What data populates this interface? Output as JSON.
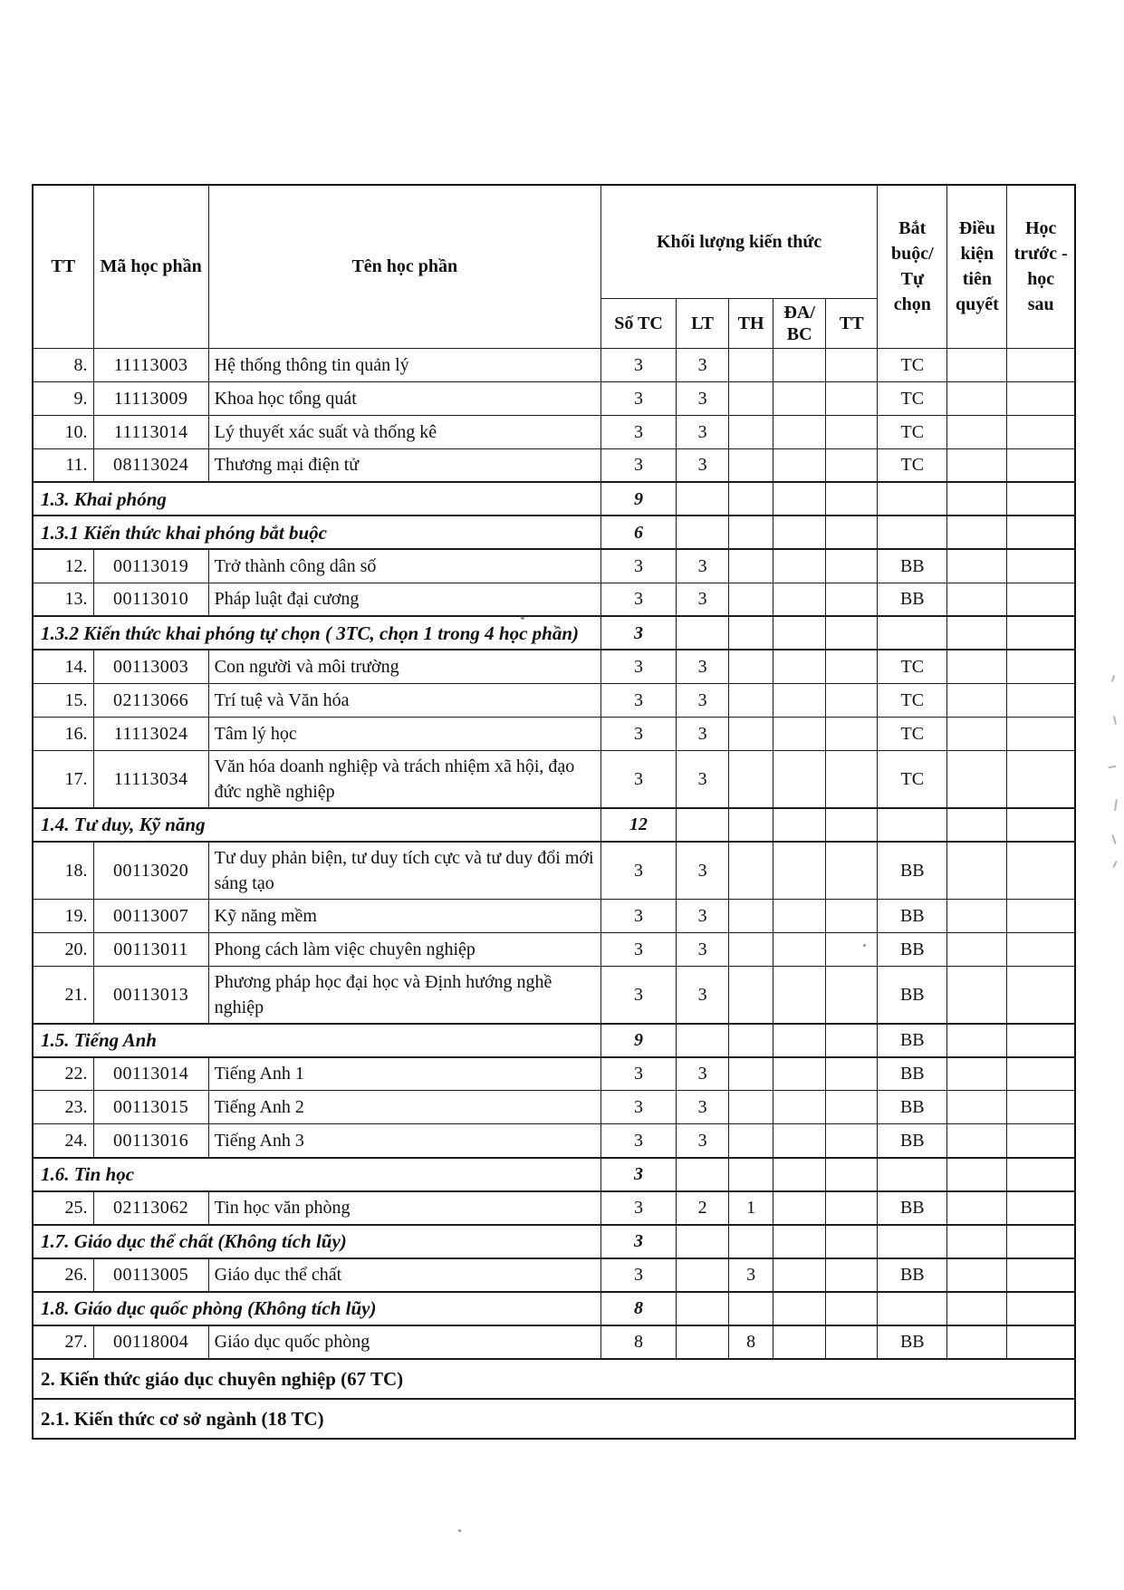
{
  "table": {
    "header": {
      "tt": "TT",
      "ma_hoc_phan": "Mã học phần",
      "ten_hoc_phan": "Tên học phần",
      "khoi_luong": "Khối lượng kiến thức",
      "sub": {
        "so_tc": "Số TC",
        "lt": "LT",
        "th": "TH",
        "da_bc": "ĐA/ BC",
        "tt": "TT"
      },
      "bat_buoc": "Bắt buộc/ Tự chọn",
      "dieu_kien": "Điều kiện tiên quyết",
      "hoc_truoc": "Học trước - học sau"
    },
    "rows": [
      {
        "type": "course",
        "tt": "8.",
        "code": "11113003",
        "name": "Hệ thống thông tin quản lý",
        "so_tc": "3",
        "lt": "3",
        "th": "",
        "da_bc": "",
        "tt2": "",
        "bat_buoc": "TC",
        "dieu_kien": "",
        "hoc_truoc": ""
      },
      {
        "type": "course",
        "tt": "9.",
        "code": "11113009",
        "name": "Khoa học tổng quát",
        "so_tc": "3",
        "lt": "3",
        "th": "",
        "da_bc": "",
        "tt2": "",
        "bat_buoc": "TC",
        "dieu_kien": "",
        "hoc_truoc": ""
      },
      {
        "type": "course",
        "tt": "10.",
        "code": "11113014",
        "name": "Lý thuyết xác suất và thống kê",
        "so_tc": "3",
        "lt": "3",
        "th": "",
        "da_bc": "",
        "tt2": "",
        "bat_buoc": "TC",
        "dieu_kien": "",
        "hoc_truoc": ""
      },
      {
        "type": "course",
        "tt": "11.",
        "code": "08113024",
        "name": "Thương mại điện tử",
        "so_tc": "3",
        "lt": "3",
        "th": "",
        "da_bc": "",
        "tt2": "",
        "bat_buoc": "TC",
        "dieu_kien": "",
        "hoc_truoc": ""
      },
      {
        "type": "section",
        "label": "1.3. Khai phóng",
        "so_tc": "9",
        "lt": "",
        "th": "",
        "da_bc": "",
        "tt2": "",
        "bat_buoc": "",
        "dieu_kien": "",
        "hoc_truoc": ""
      },
      {
        "type": "section",
        "label": "1.3.1 Kiến thức khai phóng bắt buộc",
        "so_tc": "6",
        "lt": "",
        "th": "",
        "da_bc": "",
        "tt2": "",
        "bat_buoc": "",
        "dieu_kien": "",
        "hoc_truoc": ""
      },
      {
        "type": "course",
        "tt": "12.",
        "code": "00113019",
        "name": "Trở thành công dân số",
        "so_tc": "3",
        "lt": "3",
        "th": "",
        "da_bc": "",
        "tt2": "",
        "bat_buoc": "BB",
        "dieu_kien": "",
        "hoc_truoc": ""
      },
      {
        "type": "course",
        "tt": "13.",
        "code": "00113010",
        "name": "Pháp luật đại cương",
        "so_tc": "3",
        "lt": "3",
        "th": "",
        "da_bc": "",
        "tt2": "",
        "bat_buoc": "BB",
        "dieu_kien": "",
        "hoc_truoc": ""
      },
      {
        "type": "section",
        "label": "1.3.2 Kiến thức khai phóng tự chọn ( 3TC, chọn 1 trong 4 học phần)",
        "so_tc": "3",
        "lt": "",
        "th": "",
        "da_bc": "",
        "tt2": "",
        "bat_buoc": "",
        "dieu_kien": "",
        "hoc_truoc": ""
      },
      {
        "type": "course",
        "tt": "14.",
        "code": "00113003",
        "name": "Con người và môi trường",
        "so_tc": "3",
        "lt": "3",
        "th": "",
        "da_bc": "",
        "tt2": "",
        "bat_buoc": "TC",
        "dieu_kien": "",
        "hoc_truoc": ""
      },
      {
        "type": "course",
        "tt": "15.",
        "code": "02113066",
        "name": "Trí tuệ và Văn hóa",
        "so_tc": "3",
        "lt": "3",
        "th": "",
        "da_bc": "",
        "tt2": "",
        "bat_buoc": "TC",
        "dieu_kien": "",
        "hoc_truoc": ""
      },
      {
        "type": "course",
        "tt": "16.",
        "code": "11113024",
        "name": "Tâm lý học",
        "so_tc": "3",
        "lt": "3",
        "th": "",
        "da_bc": "",
        "tt2": "",
        "bat_buoc": "TC",
        "dieu_kien": "",
        "hoc_truoc": ""
      },
      {
        "type": "course",
        "tt": "17.",
        "code": "11113034",
        "name": "Văn hóa doanh nghiệp và trách nhiệm xã hội, đạo đức nghề nghiệp",
        "so_tc": "3",
        "lt": "3",
        "th": "",
        "da_bc": "",
        "tt2": "",
        "bat_buoc": "TC",
        "dieu_kien": "",
        "hoc_truoc": ""
      },
      {
        "type": "section",
        "label": "1.4. Tư duy, Kỹ năng",
        "so_tc": "12",
        "lt": "",
        "th": "",
        "da_bc": "",
        "tt2": "",
        "bat_buoc": "",
        "dieu_kien": "",
        "hoc_truoc": ""
      },
      {
        "type": "course",
        "tt": "18.",
        "code": "00113020",
        "name": "Tư duy phản biện, tư duy tích cực và tư duy đổi mới sáng tạo",
        "so_tc": "3",
        "lt": "3",
        "th": "",
        "da_bc": "",
        "tt2": "",
        "bat_buoc": "BB",
        "dieu_kien": "",
        "hoc_truoc": ""
      },
      {
        "type": "course",
        "tt": "19.",
        "code": "00113007",
        "name": "Kỹ năng mềm",
        "so_tc": "3",
        "lt": "3",
        "th": "",
        "da_bc": "",
        "tt2": "",
        "bat_buoc": "BB",
        "dieu_kien": "",
        "hoc_truoc": ""
      },
      {
        "type": "course",
        "tt": "20.",
        "code": "00113011",
        "name": "Phong cách làm việc chuyên nghiệp",
        "so_tc": "3",
        "lt": "3",
        "th": "",
        "da_bc": "",
        "tt2": "",
        "bat_buoc": "BB",
        "dieu_kien": "",
        "hoc_truoc": ""
      },
      {
        "type": "course",
        "tt": "21.",
        "code": "00113013",
        "name": "Phương pháp học đại học và Định hướng nghề nghiệp",
        "so_tc": "3",
        "lt": "3",
        "th": "",
        "da_bc": "",
        "tt2": "",
        "bat_buoc": "BB",
        "dieu_kien": "",
        "hoc_truoc": ""
      },
      {
        "type": "section",
        "label": "1.5. Tiếng Anh",
        "so_tc": "9",
        "lt": "",
        "th": "",
        "da_bc": "",
        "tt2": "",
        "bat_buoc": "BB",
        "dieu_kien": "",
        "hoc_truoc": ""
      },
      {
        "type": "course",
        "tt": "22.",
        "code": "00113014",
        "name": "Tiếng Anh 1",
        "so_tc": "3",
        "lt": "3",
        "th": "",
        "da_bc": "",
        "tt2": "",
        "bat_buoc": "BB",
        "dieu_kien": "",
        "hoc_truoc": ""
      },
      {
        "type": "course",
        "tt": "23.",
        "code": "00113015",
        "name": "Tiếng Anh 2",
        "so_tc": "3",
        "lt": "3",
        "th": "",
        "da_bc": "",
        "tt2": "",
        "bat_buoc": "BB",
        "dieu_kien": "",
        "hoc_truoc": ""
      },
      {
        "type": "course",
        "tt": "24.",
        "code": "00113016",
        "name": "Tiếng Anh 3",
        "so_tc": "3",
        "lt": "3",
        "th": "",
        "da_bc": "",
        "tt2": "",
        "bat_buoc": "BB",
        "dieu_kien": "",
        "hoc_truoc": ""
      },
      {
        "type": "section",
        "label": "1.6. Tin học",
        "so_tc": "3",
        "lt": "",
        "th": "",
        "da_bc": "",
        "tt2": "",
        "bat_buoc": "",
        "dieu_kien": "",
        "hoc_truoc": ""
      },
      {
        "type": "course",
        "tt": "25.",
        "code": "02113062",
        "name": "Tin học văn phòng",
        "so_tc": "3",
        "lt": "2",
        "th": "1",
        "da_bc": "",
        "tt2": "",
        "bat_buoc": "BB",
        "dieu_kien": "",
        "hoc_truoc": ""
      },
      {
        "type": "section",
        "label": "1.7. Giáo dục thể chất (Không tích lũy)",
        "so_tc": "3",
        "lt": "",
        "th": "",
        "da_bc": "",
        "tt2": "",
        "bat_buoc": "",
        "dieu_kien": "",
        "hoc_truoc": ""
      },
      {
        "type": "course",
        "tt": "26.",
        "code": "00113005",
        "name": "Giáo dục thể chất",
        "so_tc": "3",
        "lt": "",
        "th": "3",
        "da_bc": "",
        "tt2": "",
        "bat_buoc": "BB",
        "dieu_kien": "",
        "hoc_truoc": ""
      },
      {
        "type": "section",
        "label": "1.8. Giáo dục quốc phòng (Không tích lũy)",
        "so_tc": "8",
        "lt": "",
        "th": "",
        "da_bc": "",
        "tt2": "",
        "bat_buoc": "",
        "dieu_kien": "",
        "hoc_truoc": ""
      },
      {
        "type": "course",
        "tt": "27.",
        "code": "00118004",
        "name": "Giáo dục quốc phòng",
        "so_tc": "8",
        "lt": "",
        "th": "8",
        "da_bc": "",
        "tt2": "",
        "bat_buoc": "BB",
        "dieu_kien": "",
        "hoc_truoc": ""
      },
      {
        "type": "full",
        "label": "2. Kiến thức giáo dục chuyên nghiệp (67 TC)"
      },
      {
        "type": "full",
        "label": "2.1. Kiến thức cơ sở ngành (18 TC)"
      }
    ]
  }
}
